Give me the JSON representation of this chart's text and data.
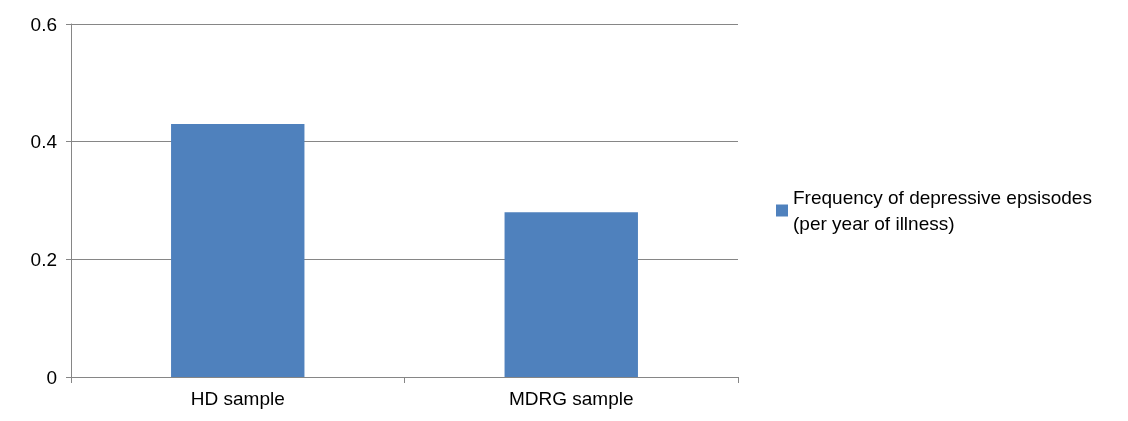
{
  "chart_data": {
    "type": "bar",
    "categories": [
      "HD sample",
      "MDRG sample"
    ],
    "series": [
      {
        "name": "Frequency of depressive epsisodes (per year of illness)",
        "color": "#4f81bd",
        "values": [
          0.43,
          0.28
        ]
      }
    ],
    "ylim": [
      0,
      0.6
    ],
    "yticks": [
      0,
      0.2,
      0.4,
      0.6
    ],
    "grid": "y",
    "legend": "right"
  }
}
